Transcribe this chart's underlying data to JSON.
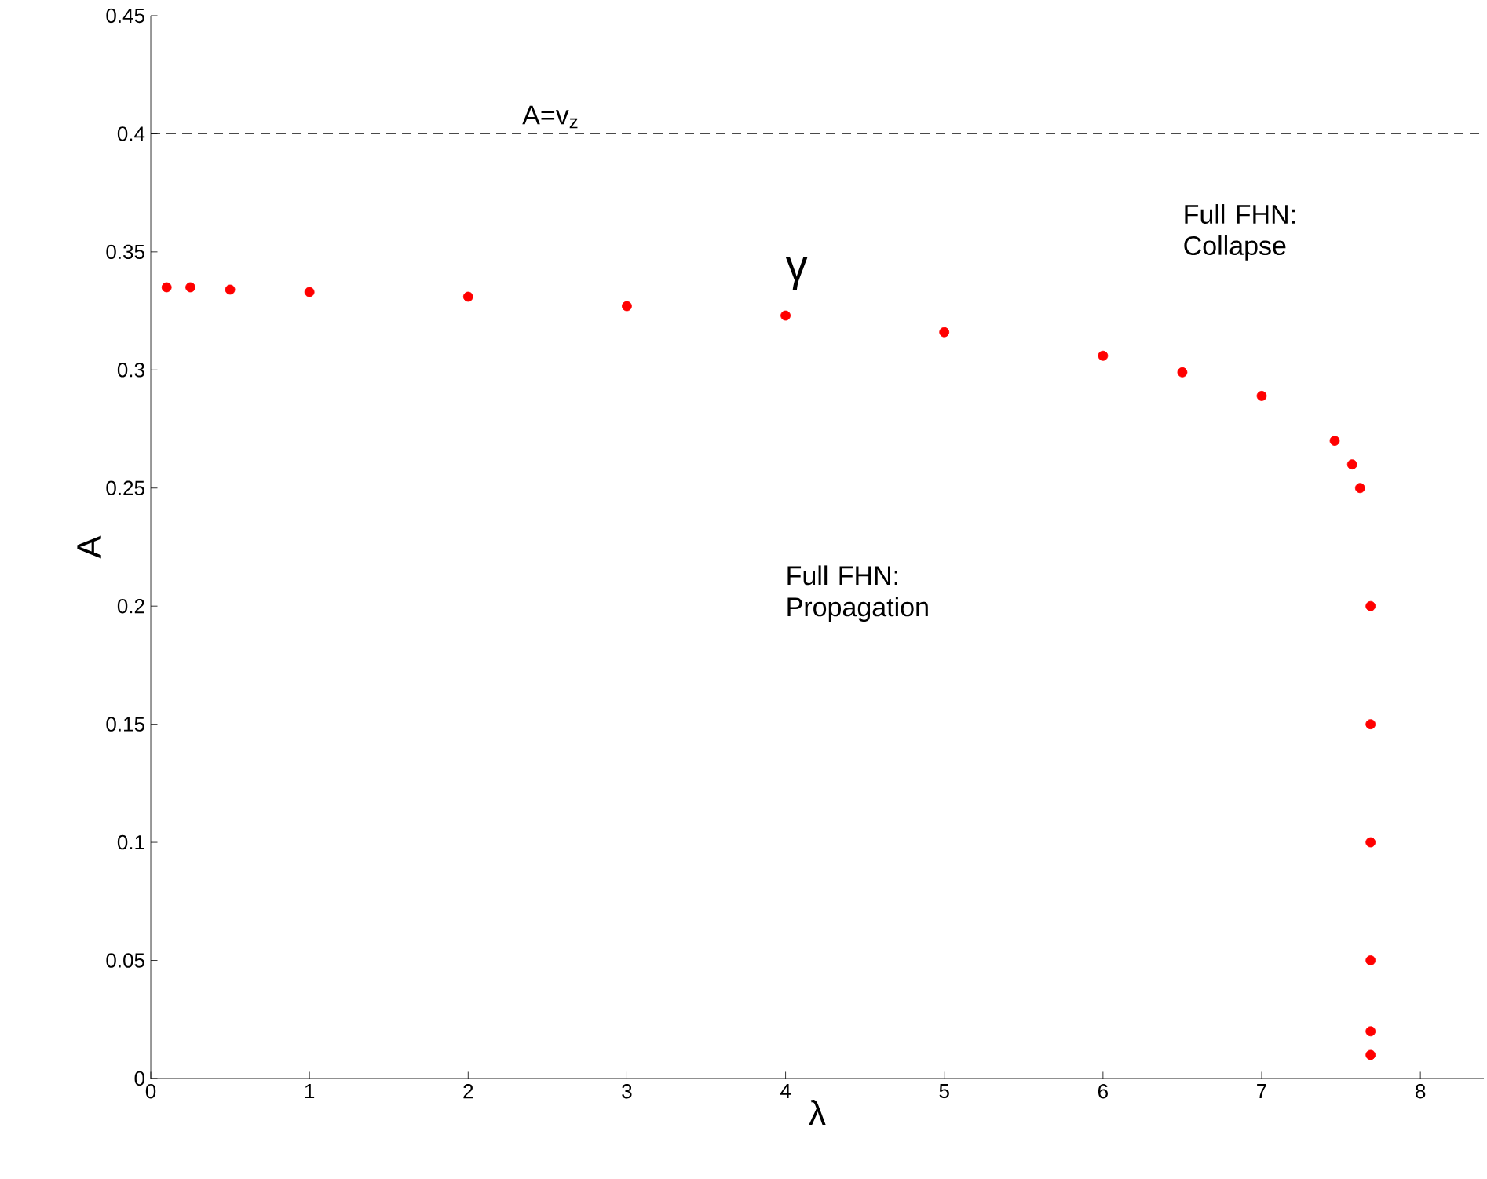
{
  "chart_data": {
    "type": "scatter",
    "xlabel": "λ",
    "ylabel": "A",
    "x": [
      0.1,
      0.25,
      0.5,
      1,
      2,
      3,
      4,
      5,
      6,
      6.5,
      7,
      7.46,
      7.57,
      7.62,
      7.686,
      7.686,
      7.686,
      7.686,
      7.686,
      7.686
    ],
    "series": [
      {
        "color": "#ff0000",
        "values": [
          0.335,
          0.335,
          0.334,
          0.333,
          0.331,
          0.327,
          0.323,
          0.316,
          0.306,
          0.299,
          0.289,
          0.27,
          0.26,
          0.25,
          0.2,
          0.15,
          0.1,
          0.05,
          0.02,
          0.01
        ]
      }
    ],
    "xlim": [
      0,
      8.4
    ],
    "ylim": [
      0,
      0.45
    ],
    "xticks": [
      0,
      1,
      2,
      3,
      4,
      5,
      6,
      7,
      8
    ],
    "yticks": [
      0,
      0.05,
      0.1,
      0.15,
      0.2,
      0.25,
      0.3,
      0.35,
      0.4,
      0.45
    ],
    "ref_lines": [
      {
        "axis": "y",
        "value": 0.4,
        "label": "A=v$_{z}$",
        "color": "#000000",
        "line_style": "dashed"
      }
    ],
    "annotations": [
      "γ",
      "Full FHN: Collapse",
      "Full FHN: Propagation"
    ],
    "marker": "circle",
    "grid": false
  }
}
